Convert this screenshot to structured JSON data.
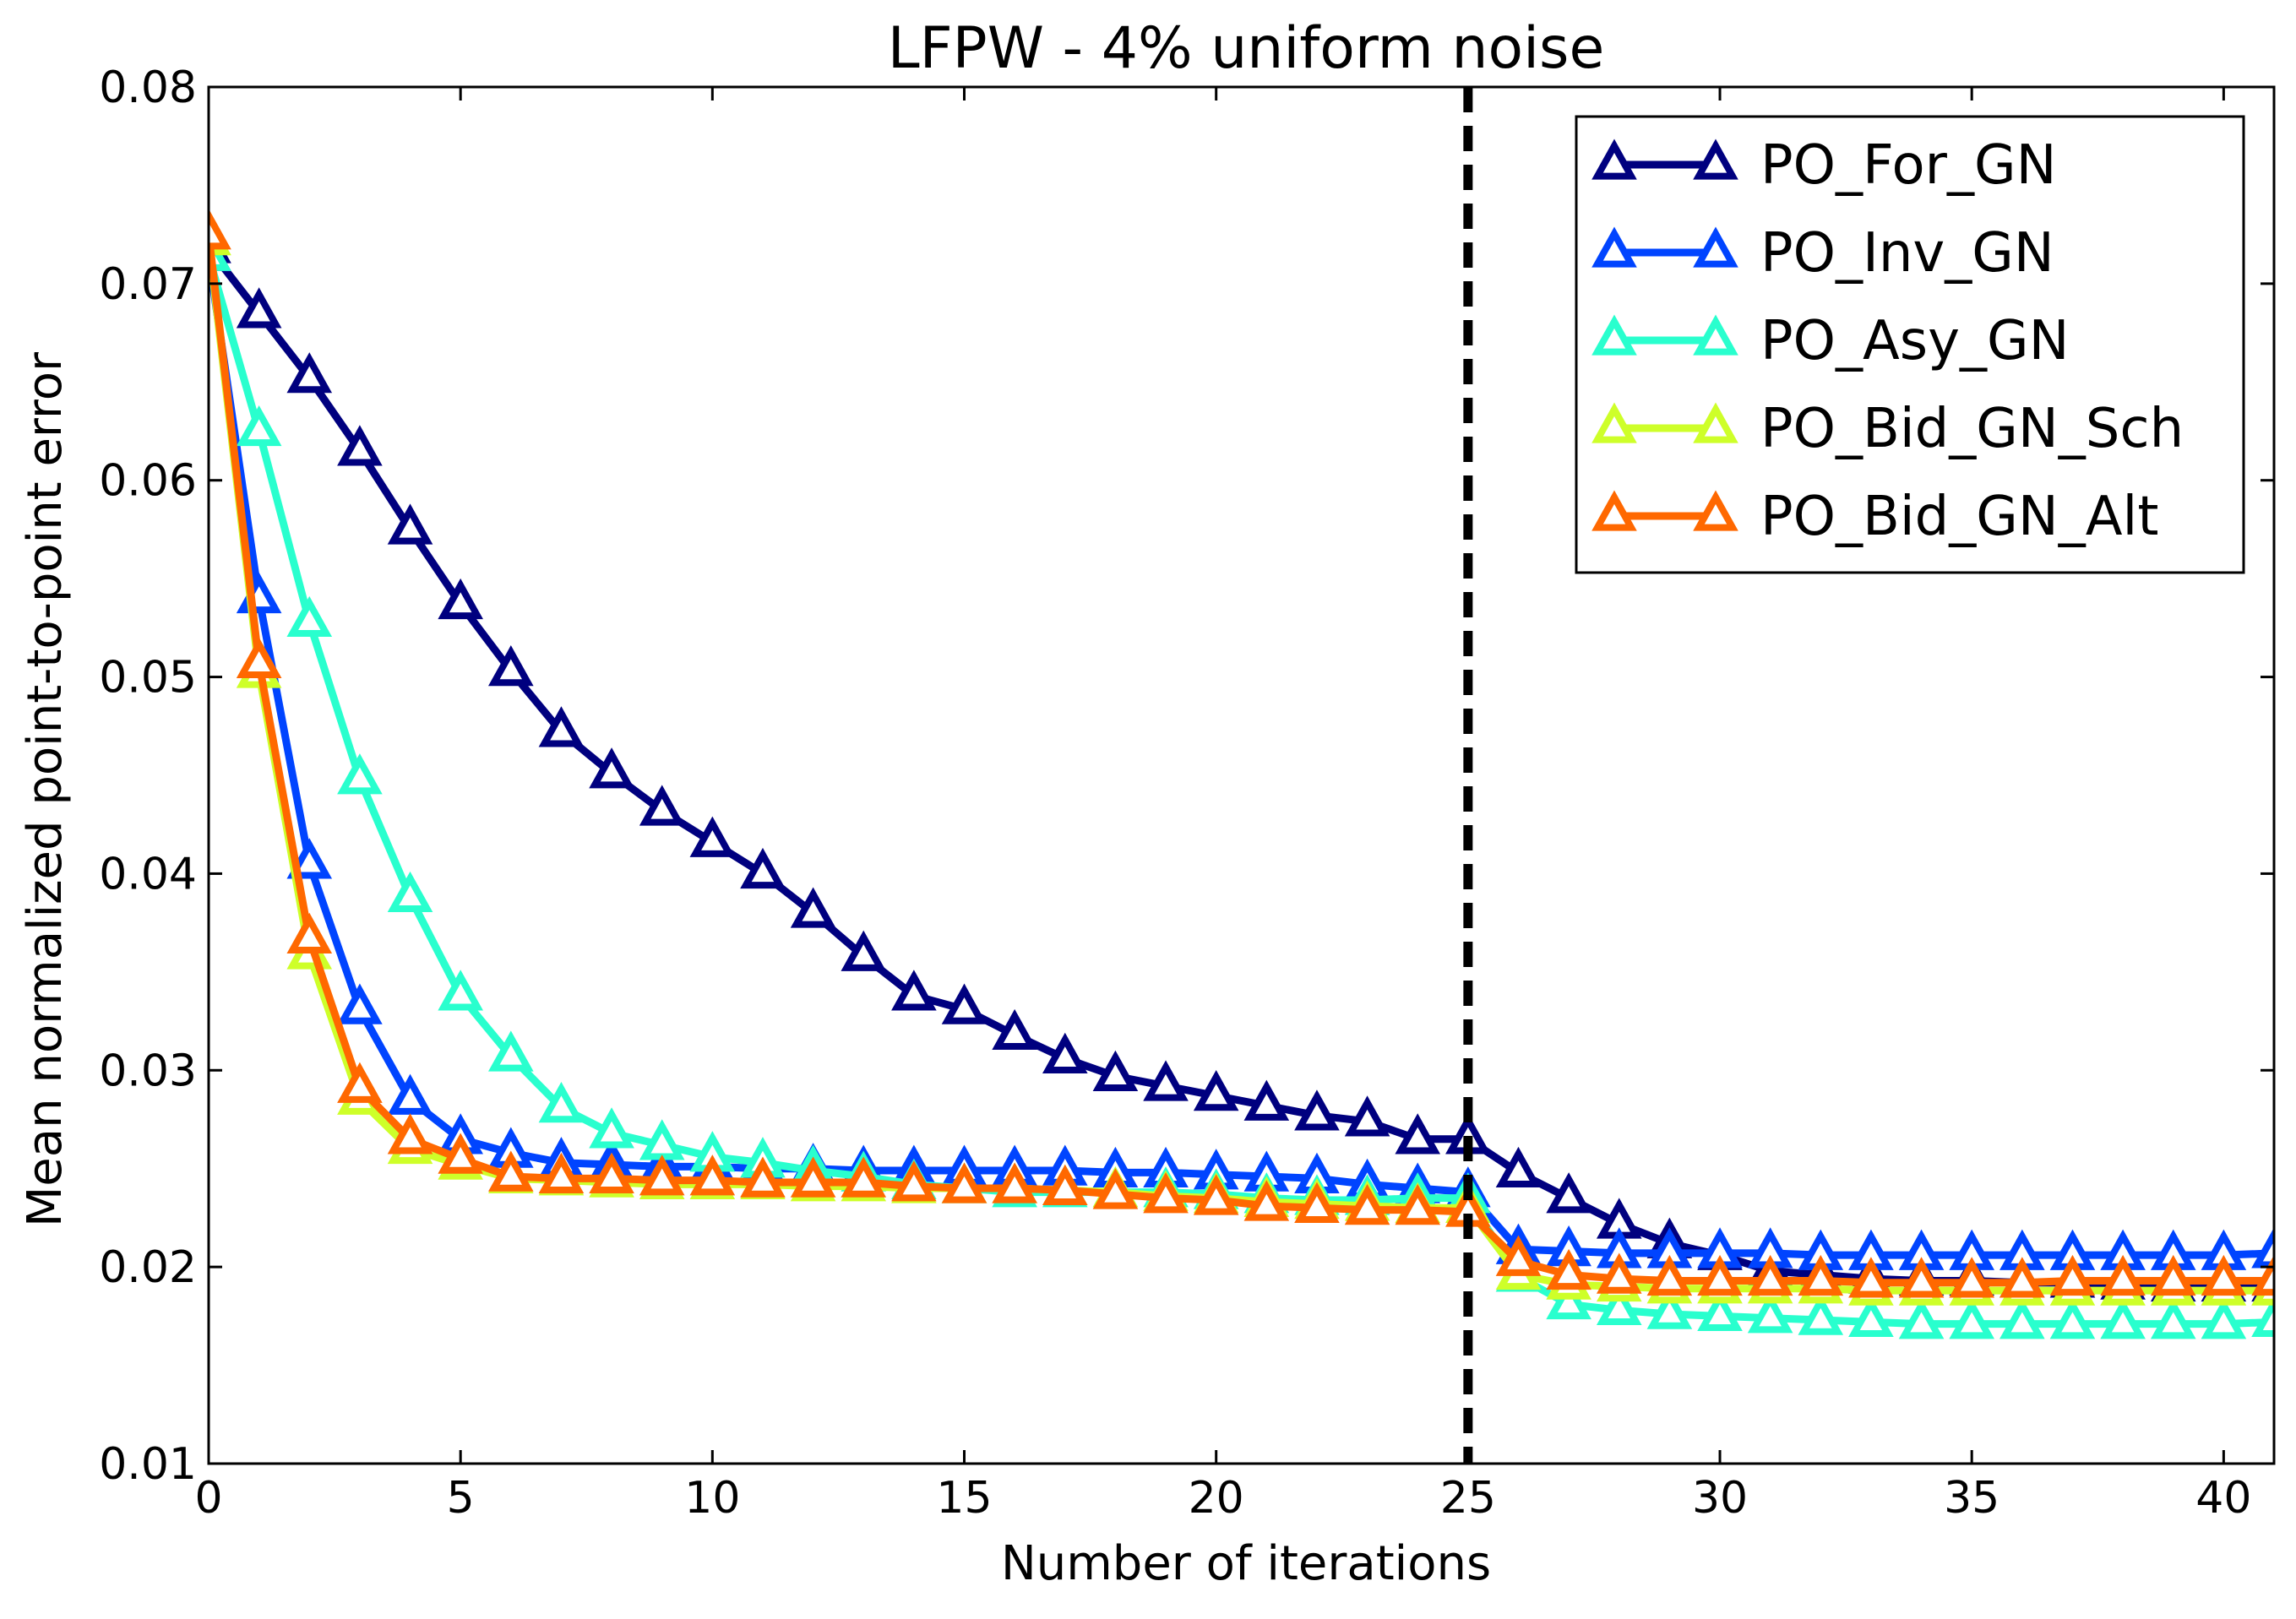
{
  "chart_data": {
    "type": "line",
    "title": "LFPW - 4% uniform noise",
    "xlabel": "Number of iterations",
    "ylabel": "Mean normalized point-to-point error",
    "xlim": [
      0,
      41
    ],
    "ylim": [
      0.01,
      0.08
    ],
    "xticks": [
      0,
      5,
      10,
      15,
      20,
      25,
      30,
      35,
      40
    ],
    "xtick_labels": [
      "0",
      "5",
      "10",
      "15",
      "20",
      "25",
      "30",
      "35",
      "40"
    ],
    "yticks": [
      0.01,
      0.02,
      0.03,
      0.04,
      0.05,
      0.06,
      0.07,
      0.08
    ],
    "ytick_labels": [
      "0.01",
      "0.02",
      "0.03",
      "0.04",
      "0.05",
      "0.06",
      "0.07",
      "0.08"
    ],
    "grid": false,
    "legend_position": "top-right",
    "marker": "triangle-up",
    "vline": {
      "x": 25,
      "style": "dashed",
      "color": "#000000"
    },
    "x": [
      0,
      1,
      2,
      3,
      4,
      5,
      6,
      7,
      8,
      9,
      10,
      11,
      12,
      13,
      14,
      15,
      16,
      17,
      18,
      19,
      20,
      21,
      22,
      23,
      24,
      25,
      26,
      27,
      28,
      29,
      30,
      31,
      32,
      33,
      34,
      35,
      36,
      37,
      38,
      39,
      40,
      41
    ],
    "series": [
      {
        "name": "PO_For_GN",
        "color": "#00007f",
        "values": [
          0.0718,
          0.0685,
          0.0652,
          0.0615,
          0.0575,
          0.0537,
          0.0503,
          0.0472,
          0.0451,
          0.0432,
          0.0416,
          0.04,
          0.038,
          0.0358,
          0.0338,
          0.0331,
          0.0318,
          0.0306,
          0.0297,
          0.0292,
          0.0287,
          0.0282,
          0.0277,
          0.0274,
          0.0265,
          0.0265,
          0.0248,
          0.0235,
          0.0222,
          0.0212,
          0.0206,
          0.0198,
          0.0196,
          0.0194,
          0.0193,
          0.0193,
          0.0192,
          0.0192,
          0.0191,
          0.019,
          0.019,
          0.019
        ]
      },
      {
        "name": "PO_Inv_GN",
        "color": "#0044ff",
        "values": [
          0.0714,
          0.054,
          0.0405,
          0.0331,
          0.0285,
          0.0265,
          0.0258,
          0.0253,
          0.0252,
          0.0251,
          0.0251,
          0.025,
          0.025,
          0.0249,
          0.0249,
          0.0249,
          0.0249,
          0.0249,
          0.0248,
          0.0248,
          0.0247,
          0.0246,
          0.0245,
          0.0242,
          0.024,
          0.0238,
          0.0209,
          0.0208,
          0.0207,
          0.0207,
          0.0207,
          0.0207,
          0.0206,
          0.0206,
          0.0206,
          0.0206,
          0.0206,
          0.0206,
          0.0206,
          0.0206,
          0.0206,
          0.0207
        ]
      },
      {
        "name": "PO_Asy_GN",
        "color": "#29ffce",
        "values": [
          0.0714,
          0.0625,
          0.0528,
          0.0448,
          0.0388,
          0.0338,
          0.0307,
          0.0281,
          0.0268,
          0.0262,
          0.0256,
          0.0253,
          0.0249,
          0.0246,
          0.0242,
          0.024,
          0.0238,
          0.0238,
          0.0238,
          0.0238,
          0.0237,
          0.0235,
          0.0234,
          0.0234,
          0.0235,
          0.0235,
          0.0195,
          0.0181,
          0.0178,
          0.0176,
          0.0175,
          0.0174,
          0.0173,
          0.0172,
          0.0171,
          0.0171,
          0.0171,
          0.0171,
          0.0171,
          0.0171,
          0.0171,
          0.0172
        ]
      },
      {
        "name": "PO_Bid_GN_Sch",
        "color": "#ceff29",
        "values": [
          0.0722,
          0.0502,
          0.0359,
          0.0285,
          0.026,
          0.0252,
          0.0245,
          0.0244,
          0.0243,
          0.0242,
          0.0242,
          0.0242,
          0.0241,
          0.0241,
          0.024,
          0.024,
          0.024,
          0.0239,
          0.0238,
          0.0236,
          0.0235,
          0.0233,
          0.0232,
          0.0231,
          0.023,
          0.023,
          0.0196,
          0.0191,
          0.019,
          0.0189,
          0.0189,
          0.0189,
          0.0189,
          0.0188,
          0.0188,
          0.0188,
          0.0188,
          0.0188,
          0.0188,
          0.0188,
          0.0188,
          0.0188
        ]
      },
      {
        "name": "PO_Bid_GN_Alt",
        "color": "#ff6800",
        "values": [
          0.0725,
          0.0507,
          0.0367,
          0.0291,
          0.0265,
          0.0255,
          0.0246,
          0.0245,
          0.0245,
          0.0244,
          0.0244,
          0.0243,
          0.0243,
          0.0243,
          0.0241,
          0.024,
          0.024,
          0.0239,
          0.0237,
          0.0235,
          0.0234,
          0.0231,
          0.023,
          0.0229,
          0.0229,
          0.0228,
          0.0203,
          0.0196,
          0.0194,
          0.0193,
          0.0193,
          0.0193,
          0.0193,
          0.0192,
          0.0192,
          0.0192,
          0.0192,
          0.0193,
          0.0193,
          0.0193,
          0.0193,
          0.0193
        ]
      }
    ]
  }
}
